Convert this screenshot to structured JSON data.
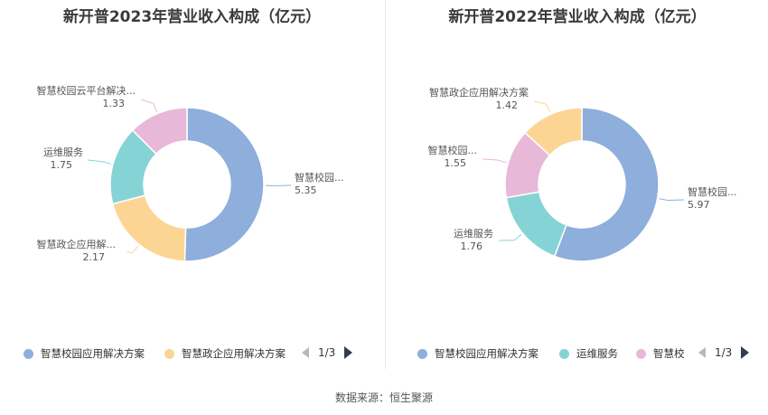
{
  "source_text": "数据来源：恒生聚源",
  "chart_data": [
    {
      "type": "pie",
      "variant": "donut",
      "title": "新开普2023年营业收入构成（亿元）",
      "slices": [
        {
          "name": "智慧校园应用解决方案",
          "value": 5.35,
          "label": "智慧校园...",
          "value_label": "5.35",
          "color": "#8eaedb"
        },
        {
          "name": "智慧政企应用解决方案",
          "value": 2.17,
          "label": "智慧政企应用解...",
          "value_label": "2.17",
          "color": "#fcd595"
        },
        {
          "name": "运维服务",
          "value": 1.75,
          "label": "运维服务",
          "value_label": "1.75",
          "color": "#86d3d6"
        },
        {
          "name": "智慧校园云平台解决方案",
          "value": 1.33,
          "label": "智慧校园云平台解决...",
          "value_label": "1.33",
          "color": "#e8b8d9"
        }
      ],
      "legend": {
        "position": "bottom",
        "items": [
          "智慧校园应用解决方案",
          "智慧政企应用解决方案"
        ],
        "page": "1/3"
      }
    },
    {
      "type": "pie",
      "variant": "donut",
      "title": "新开普2022年营业收入构成（亿元）",
      "slices": [
        {
          "name": "智慧校园应用解决方案",
          "value": 5.97,
          "label": "智慧校园...",
          "value_label": "5.97",
          "color": "#8eaedb"
        },
        {
          "name": "运维服务",
          "value": 1.76,
          "label": "运维服务",
          "value_label": "1.76",
          "color": "#86d3d6"
        },
        {
          "name": "智慧校园",
          "value": 1.55,
          "label": "智慧校园...",
          "value_label": "1.55",
          "color": "#e8b8d9"
        },
        {
          "name": "智慧政企应用解决方案",
          "value": 1.42,
          "label": "智慧政企应用解决方案",
          "value_label": "1.42",
          "color": "#fcd595"
        }
      ],
      "legend": {
        "position": "bottom",
        "items": [
          "智慧校园应用解决方案",
          "运维服务",
          "智慧校"
        ],
        "page": "1/3"
      }
    }
  ]
}
